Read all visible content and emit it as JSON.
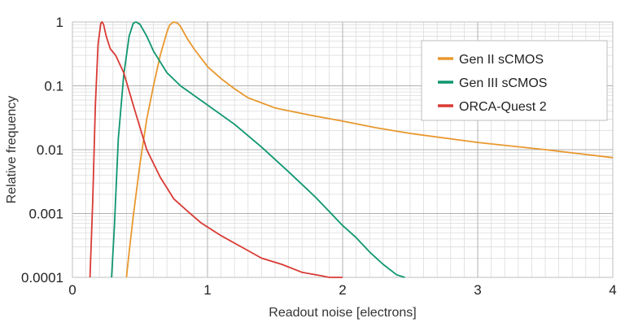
{
  "chart_data": {
    "type": "line",
    "title": "",
    "xlabel": "Readout noise [electrons]",
    "ylabel": "Relative frequency",
    "xlim": [
      0,
      4
    ],
    "ylim": [
      0.0001,
      1
    ],
    "yscale": "log",
    "x_ticks": [
      "0",
      "1",
      "2",
      "3",
      "4"
    ],
    "y_ticks": [
      "0.0001",
      "0.001",
      "0.01",
      "0.1",
      "1"
    ],
    "grid": true,
    "legend": "top-right",
    "series": [
      {
        "name": "Gen II sCMOS",
        "color": "#e8982e",
        "x": [
          0.4,
          0.42,
          0.45,
          0.5,
          0.55,
          0.6,
          0.65,
          0.7,
          0.72,
          0.75,
          0.78,
          0.8,
          0.85,
          0.9,
          1.0,
          1.1,
          1.2,
          1.3,
          1.5,
          1.75,
          2.0,
          2.25,
          2.5,
          3.0,
          3.5,
          4.0
        ],
        "y": [
          0.0001,
          0.00025,
          0.0009,
          0.006,
          0.03,
          0.1,
          0.3,
          0.7,
          0.9,
          1.0,
          0.95,
          0.85,
          0.55,
          0.38,
          0.2,
          0.13,
          0.09,
          0.065,
          0.045,
          0.035,
          0.028,
          0.022,
          0.018,
          0.013,
          0.01,
          0.0075
        ]
      },
      {
        "name": "Gen III sCMOS",
        "color": "#0f9670",
        "x": [
          0.29,
          0.31,
          0.34,
          0.38,
          0.42,
          0.45,
          0.47,
          0.5,
          0.55,
          0.6,
          0.7,
          0.8,
          1.0,
          1.2,
          1.4,
          1.6,
          1.8,
          2.0,
          2.1,
          2.2,
          2.3,
          2.4,
          2.46
        ],
        "y": [
          0.0001,
          0.0006,
          0.015,
          0.15,
          0.6,
          0.95,
          1.0,
          0.92,
          0.6,
          0.35,
          0.16,
          0.1,
          0.05,
          0.025,
          0.011,
          0.0045,
          0.0018,
          0.00065,
          0.00042,
          0.00025,
          0.00016,
          0.00011,
          0.0001
        ]
      },
      {
        "name": "ORCA-Quest 2",
        "color": "#d93a34",
        "x": [
          0.13,
          0.15,
          0.17,
          0.19,
          0.21,
          0.22,
          0.23,
          0.25,
          0.28,
          0.32,
          0.38,
          0.45,
          0.55,
          0.65,
          0.75,
          0.85,
          0.95,
          1.1,
          1.25,
          1.4,
          1.55,
          1.7,
          1.85,
          1.9,
          2.0
        ],
        "y": [
          0.0001,
          0.0015,
          0.05,
          0.45,
          0.95,
          1.0,
          0.92,
          0.6,
          0.38,
          0.3,
          0.16,
          0.05,
          0.01,
          0.0037,
          0.0017,
          0.0011,
          0.00072,
          0.00045,
          0.0003,
          0.0002,
          0.00016,
          0.00012,
          0.000105,
          0.0001,
          0.0001
        ]
      }
    ]
  }
}
